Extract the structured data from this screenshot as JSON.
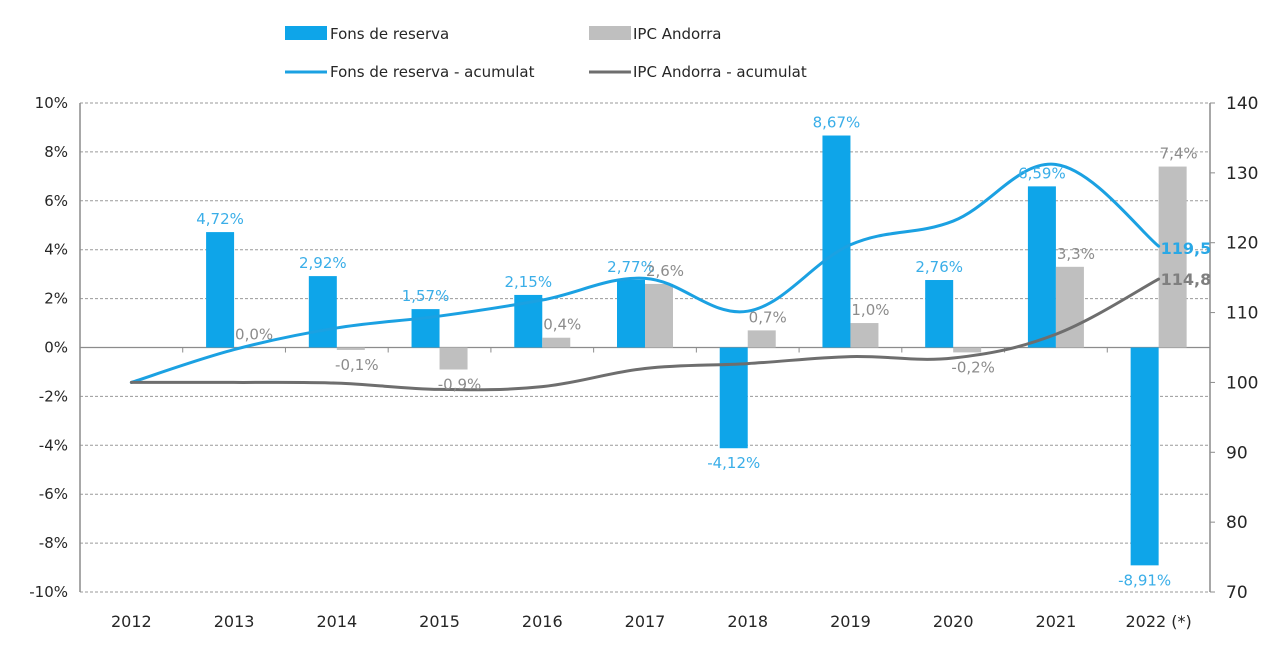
{
  "chart_data": {
    "type": "bar",
    "title": "",
    "xlabel": "",
    "ylabel": "",
    "y2label": "",
    "categories": [
      "2012",
      "2013",
      "2014",
      "2015",
      "2016",
      "2017",
      "2018",
      "2019",
      "2020",
      "2021",
      "2022 (*)"
    ],
    "ylim": [
      -10,
      10
    ],
    "yticks": [
      -10,
      -8,
      -6,
      -4,
      -2,
      0,
      2,
      4,
      6,
      8,
      10
    ],
    "ytick_labels": [
      "-10%",
      "-8%",
      "-6%",
      "-4%",
      "-2%",
      "0%",
      "2%",
      "4%",
      "6%",
      "8%",
      "10%"
    ],
    "y2lim": [
      70,
      140
    ],
    "y2ticks": [
      70,
      80,
      90,
      100,
      110,
      120,
      130,
      140
    ],
    "y2tick_labels": [
      "70",
      "80",
      "90",
      "100",
      "110",
      "120",
      "130",
      "140"
    ],
    "grid": true,
    "legend_position": "top",
    "series": [
      {
        "name": "Fons de reserva",
        "kind": "bar",
        "axis": "left",
        "color": "#0ea5e9",
        "values": [
          null,
          4.72,
          2.92,
          1.57,
          2.15,
          2.77,
          -4.12,
          8.67,
          2.76,
          6.59,
          -8.91
        ],
        "labels": [
          "",
          "4,72%",
          "2,92%",
          "1,57%",
          "2,15%",
          "2,77%",
          "-4,12%",
          "8,67%",
          "2,76%",
          "6,59%",
          "-8,91%"
        ]
      },
      {
        "name": "IPC Andorra",
        "kind": "bar",
        "axis": "left",
        "color": "#bfbfbf",
        "values": [
          null,
          0.0,
          -0.1,
          -0.9,
          0.4,
          2.6,
          0.7,
          1.0,
          -0.2,
          3.3,
          7.4
        ],
        "labels": [
          "",
          "0,0%",
          "-0,1%",
          "-0,9%",
          "0,4%",
          "2,6%",
          "0,7%",
          "1,0%",
          "-0,2%",
          "3,3%",
          "7,4%"
        ]
      },
      {
        "name": "Fons de reserva - acumulat",
        "kind": "line",
        "axis": "right",
        "color": "#1ba1e2",
        "values": [
          100,
          104.7,
          107.8,
          109.5,
          111.8,
          114.9,
          110.2,
          119.7,
          123.1,
          131.2,
          119.5
        ],
        "end_label": "119,5"
      },
      {
        "name": "IPC Andorra - acumulat",
        "kind": "line",
        "axis": "right",
        "color": "#6e6e6e",
        "values": [
          100,
          100,
          99.9,
          99.0,
          99.4,
          102.0,
          102.7,
          103.7,
          103.5,
          106.9,
          114.8
        ],
        "end_label": "114,8"
      }
    ]
  }
}
